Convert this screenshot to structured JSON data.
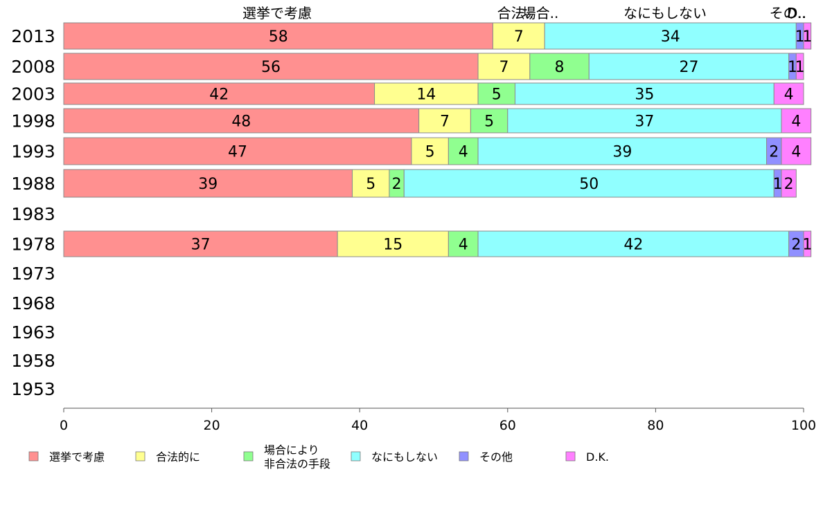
{
  "chart_data": {
    "type": "bar",
    "orientation": "horizontal",
    "stacked": true,
    "categories": [
      "2013",
      "2008",
      "2003",
      "1998",
      "1993",
      "1988",
      "1983",
      "1978",
      "1973",
      "1968",
      "1963",
      "1958",
      "1953"
    ],
    "series": [
      {
        "name": "選挙で考慮",
        "color": "#ff9090",
        "values": [
          58,
          56,
          42,
          48,
          47,
          39,
          null,
          37,
          null,
          null,
          null,
          null,
          null
        ]
      },
      {
        "name": "合法的に",
        "color": "#ffff90",
        "values": [
          7,
          7,
          14,
          7,
          5,
          5,
          null,
          15,
          null,
          null,
          null,
          null,
          null
        ]
      },
      {
        "name": "場合により非合法の手段",
        "color": "#90ff90",
        "values": [
          0,
          8,
          5,
          5,
          4,
          2,
          null,
          4,
          null,
          null,
          null,
          null,
          null
        ]
      },
      {
        "name": "なにもしない",
        "color": "#90ffff",
        "values": [
          34,
          27,
          35,
          37,
          39,
          50,
          null,
          42,
          null,
          null,
          null,
          null,
          null
        ]
      },
      {
        "name": "その他",
        "color": "#9090ff",
        "values": [
          1,
          1,
          0,
          0,
          2,
          1,
          null,
          2,
          null,
          null,
          null,
          null,
          null
        ]
      },
      {
        "name": "D.K.",
        "color": "#ff80ff",
        "values": [
          1,
          1,
          4,
          4,
          4,
          2,
          null,
          1,
          null,
          null,
          null,
          null,
          null
        ]
      }
    ],
    "top_labels": [
      "選挙で考慮",
      "合法..",
      "場合..",
      "なにもしない",
      "その..",
      "D.."
    ],
    "xlim": [
      0,
      100
    ],
    "xticks": [
      "0",
      "20",
      "40",
      "60",
      "80",
      "100"
    ],
    "legend": [
      {
        "lines": [
          "選挙で考慮"
        ],
        "color": "#ff9090"
      },
      {
        "lines": [
          "合法的に"
        ],
        "color": "#ffff90"
      },
      {
        "lines": [
          "場合により",
          "非合法の手段"
        ],
        "color": "#90ff90"
      },
      {
        "lines": [
          "なにもしない"
        ],
        "color": "#90ffff"
      },
      {
        "lines": [
          "その他"
        ],
        "color": "#9090ff"
      },
      {
        "lines": [
          "D.K."
        ],
        "color": "#ff80ff"
      }
    ],
    "legend_position": "bottom",
    "grid": false
  }
}
